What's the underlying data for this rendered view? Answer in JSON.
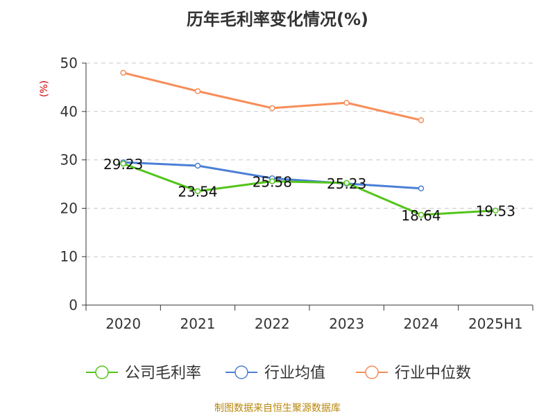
{
  "chart_data": {
    "type": "line",
    "title": "历年毛利率变化情况(%)",
    "ylabel": "(%)",
    "xlabel": "",
    "categories": [
      "2020",
      "2021",
      "2022",
      "2023",
      "2024",
      "2025H1"
    ],
    "ylim": [
      0,
      50
    ],
    "yticks": [
      0,
      10,
      20,
      30,
      40,
      50
    ],
    "grid": true,
    "legend_position": "bottom",
    "series": [
      {
        "name": "公司毛利率",
        "color": "#52c41a",
        "values": [
          29.23,
          23.54,
          25.58,
          25.23,
          18.64,
          19.53
        ],
        "labels": [
          "29.23",
          "23.54",
          "25.58",
          "25.23",
          "18.64",
          "19.53"
        ]
      },
      {
        "name": "行业均值",
        "color": "#4a7fd6",
        "values": [
          29.5,
          28.8,
          26.2,
          25.1,
          24.1,
          null
        ]
      },
      {
        "name": "行业中位数",
        "color": "#f78d58",
        "values": [
          48.0,
          44.2,
          40.7,
          41.8,
          38.2,
          null
        ]
      }
    ]
  },
  "source_text": "制图数据来自恒生聚源数据库"
}
